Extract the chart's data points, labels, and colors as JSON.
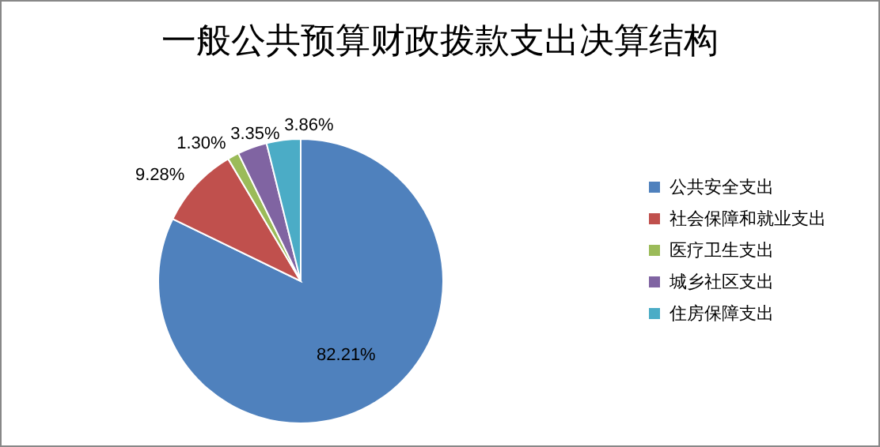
{
  "chart_data": {
    "type": "pie",
    "title": "一般公共预算财政拨款支出决算结构",
    "categories": [
      "公共安全支出",
      "社会保障和就业支出",
      "医疗卫生支出",
      "城乡社区支出",
      "住房保障支出"
    ],
    "values": [
      82.21,
      9.28,
      1.3,
      3.35,
      3.86
    ],
    "colors": [
      "#4f81bd",
      "#c0504d",
      "#9bbb59",
      "#8064a2",
      "#4bacc6"
    ],
    "value_labels": [
      "82.21%",
      "9.28%",
      "1.30%",
      "3.35%",
      "3.86%"
    ],
    "legend": "right"
  }
}
